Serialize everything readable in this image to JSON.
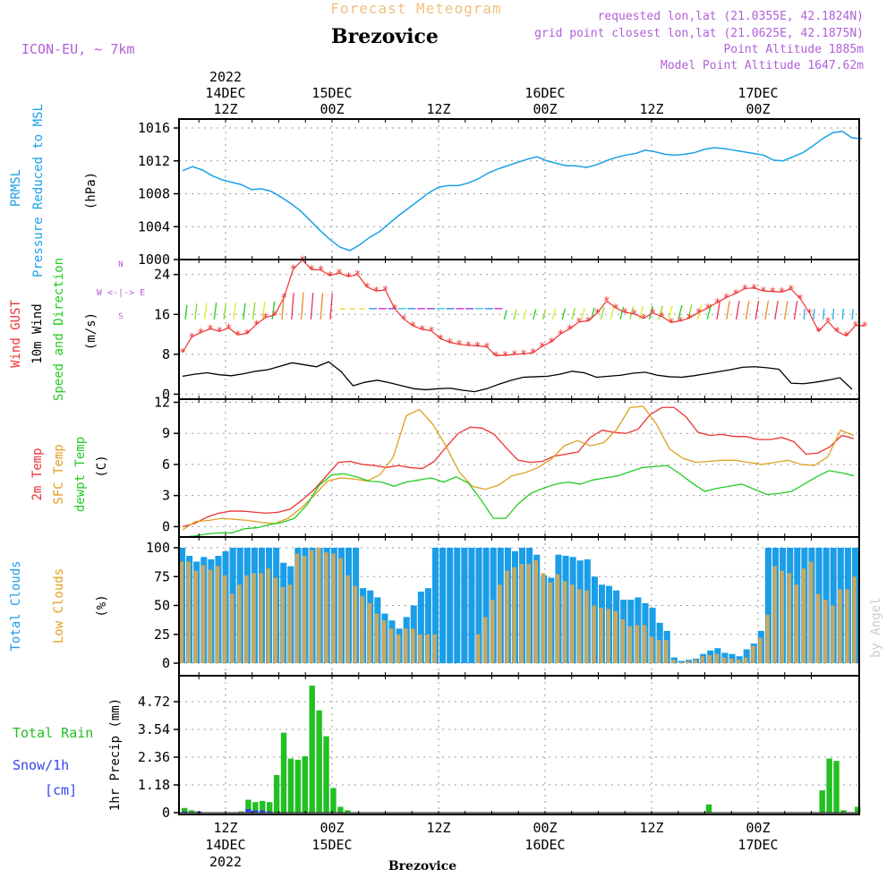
{
  "header": {
    "product": "Forecast Meteogram",
    "location": "Brezovice",
    "model": "ICON-EU, ~ 7km",
    "info_lines": [
      "requested lon,lat (21.0355E, 42.1824N)",
      "grid point closest lon,lat (21.0625E, 42.1875N)",
      "Point Altitude 1885m",
      "Model Point Altitude 1647.62m"
    ],
    "footer_location": "Brezovice",
    "watermark": "by Angel"
  },
  "colors": {
    "pressure": "#1aa0e6",
    "gust": "#ee3333",
    "wind10m": "#000000",
    "temp2m": "#ee3333",
    "sfc_temp": "#e0a020",
    "dewpt": "#22cc22",
    "total_clouds": "#1a9ee8",
    "low_clouds": "#c8a860",
    "rain": "#22c022",
    "snow": "#3344ee",
    "label_purple": "#b060d8",
    "label_orange": "#f0c080"
  },
  "time_axis": {
    "top_ticks": [
      {
        "hour": 12,
        "lines": [
          "2022",
          "14DEC",
          "12Z"
        ]
      },
      {
        "hour": 24,
        "lines": [
          "15DEC",
          "00Z"
        ]
      },
      {
        "hour": 36,
        "lines": [
          "12Z"
        ]
      },
      {
        "hour": 48,
        "lines": [
          "16DEC",
          "00Z"
        ]
      },
      {
        "hour": 60,
        "lines": [
          "12Z"
        ]
      },
      {
        "hour": 72,
        "lines": [
          "17DEC",
          "00Z"
        ]
      }
    ],
    "bottom_ticks": [
      {
        "hour": 12,
        "lines": [
          "12Z",
          "14DEC",
          "2022"
        ]
      },
      {
        "hour": 24,
        "lines": [
          "00Z",
          "15DEC"
        ]
      },
      {
        "hour": 36,
        "lines": [
          "12Z"
        ]
      },
      {
        "hour": 48,
        "lines": [
          "00Z",
          "16DEC"
        ]
      },
      {
        "hour": 60,
        "lines": [
          "12Z"
        ]
      },
      {
        "hour": 72,
        "lines": [
          "00Z",
          "17DEC"
        ]
      }
    ]
  },
  "chart_data": [
    {
      "type": "line",
      "panel": "pressure",
      "ylabel": [
        "PRMSL",
        "Pressure Reduced to MSL",
        "(hPa)"
      ],
      "ylim": [
        1000,
        1017
      ],
      "yticks": [
        1000,
        1004,
        1008,
        1012,
        1016
      ],
      "x_start": 0,
      "x_step": 1,
      "series": [
        {
          "values": [
            1010.8,
            1011.3,
            1010.9,
            1010.2,
            1009.7,
            1009.4,
            1009.1,
            1008.5,
            1008.6,
            1008.3,
            1007.6,
            1006.8,
            1005.9,
            1004.7,
            1003.5,
            1002.4,
            1001.5,
            1001.1,
            1001.8,
            1002.7,
            1003.4,
            1004.4,
            1005.4,
            1006.3,
            1007.2,
            1008.1,
            1008.8,
            1009.0,
            1009.0,
            1009.3,
            1009.8,
            1010.5,
            1011.0,
            1011.4,
            1011.8,
            1012.2,
            1012.5,
            1012.0,
            1011.7,
            1011.4,
            1011.4,
            1011.2,
            1011.5,
            1012.0,
            1012.4,
            1012.7,
            1012.9,
            1013.3,
            1013.1,
            1012.8,
            1012.7,
            1012.8,
            1013.0,
            1013.4,
            1013.6,
            1013.5,
            1013.3,
            1013.1,
            1012.9,
            1012.7,
            1012.1,
            1012.0,
            1012.5,
            1013.0,
            1013.8,
            1014.7,
            1015.4,
            1015.6,
            1014.8,
            1014.7
          ]
        }
      ]
    },
    {
      "type": "line",
      "panel": "wind",
      "ylabel": [
        "Wind GUST",
        "10m Wind",
        "Speed and Direction",
        "(m/s)"
      ],
      "compass": [
        "N",
        "W <-|-> E",
        "S"
      ],
      "ylim": [
        -1,
        27
      ],
      "yticks": [
        0,
        8,
        16,
        24
      ],
      "x_start": 0,
      "x_step": 1,
      "series": [
        {
          "name": "Wind GUST",
          "values": [
            8.4,
            11.5,
            12.4,
            13.1,
            12.6,
            13.3,
            11.9,
            12.2,
            14.0,
            15.4,
            15.9,
            19.4,
            25.1,
            26.9,
            25.0,
            24.9,
            23.8,
            24.3,
            23.6,
            24.0,
            21.5,
            20.7,
            20.9,
            17.2,
            15.1,
            13.7,
            13.0,
            12.7,
            11.1,
            10.4,
            10.0,
            9.8,
            9.7,
            9.5,
            7.7,
            7.8,
            8.0,
            8.1,
            8.3,
            9.6,
            10.5,
            12.1,
            13.1,
            14.5,
            14.7,
            16.3,
            18.7,
            17.3,
            16.4,
            16.1,
            15.2,
            16.3,
            15.6,
            14.4,
            14.7,
            15.3,
            16.4,
            17.3,
            18.4,
            19.4,
            20.2,
            21.2,
            21.3,
            20.7,
            20.6,
            20.5,
            21.1,
            19.2,
            16.3,
            12.6,
            14.6,
            12.6,
            11.7,
            13.8,
            13.7
          ]
        },
        {
          "name": "10m Wind",
          "values": [
            3.6,
            4.0,
            4.3,
            3.9,
            3.7,
            4.1,
            4.6,
            4.9,
            5.6,
            6.3,
            5.9,
            5.5,
            6.5,
            4.6,
            1.7,
            2.4,
            2.8,
            2.3,
            1.7,
            1.1,
            0.9,
            1.1,
            1.2,
            0.8,
            0.5,
            1.1,
            2.0,
            2.8,
            3.4,
            3.5,
            3.6,
            4.0,
            4.6,
            4.3,
            3.4,
            3.6,
            3.8,
            4.2,
            4.4,
            3.8,
            3.5,
            3.4,
            3.7,
            4.1,
            4.5,
            4.9,
            5.4,
            5.5,
            5.3,
            5.0,
            2.2,
            2.1,
            2.4,
            2.8,
            3.3,
            1.0
          ]
        }
      ]
    },
    {
      "type": "line",
      "panel": "temperature",
      "ylabel": [
        "2m Temp",
        "SFC Temp",
        "dewpt Temp",
        "(C)"
      ],
      "ylim": [
        -1,
        12.3
      ],
      "yticks": [
        0,
        3,
        6,
        9,
        12
      ],
      "x_start": 0,
      "x_step": 1,
      "series": [
        {
          "name": "2m Temp",
          "values": [
            0.0,
            0.3,
            0.9,
            1.3,
            1.5,
            1.5,
            1.4,
            1.3,
            1.4,
            1.7,
            2.6,
            3.6,
            4.9,
            6.2,
            6.3,
            6.0,
            5.9,
            5.7,
            5.9,
            5.7,
            5.6,
            6.3,
            7.7,
            9.0,
            9.6,
            9.5,
            8.9,
            7.6,
            6.4,
            6.2,
            6.3,
            6.8,
            7.0,
            7.2,
            8.6,
            9.3,
            9.1,
            9.0,
            9.4,
            10.8,
            11.5,
            11.5,
            10.6,
            9.1,
            8.8,
            8.9,
            8.7,
            8.7,
            8.4,
            8.4,
            8.6,
            8.2,
            7.0,
            7.1,
            7.7,
            8.8,
            8.5
          ]
        },
        {
          "name": "SFC Temp",
          "values": [
            -0.3,
            0.5,
            0.6,
            0.8,
            0.7,
            0.6,
            0.4,
            0.3,
            0.8,
            1.8,
            3.0,
            4.4,
            4.7,
            4.6,
            4.4,
            5.0,
            6.7,
            10.7,
            11.3,
            9.9,
            7.8,
            5.3,
            3.9,
            3.6,
            4.0,
            4.9,
            5.2,
            5.7,
            6.5,
            7.8,
            8.3,
            7.8,
            8.1,
            9.4,
            11.5,
            11.6,
            9.9,
            7.5,
            6.6,
            6.2,
            6.3,
            6.4,
            6.4,
            6.2,
            6.0,
            6.2,
            6.4,
            6.0,
            5.9,
            6.7,
            9.3,
            8.8
          ]
        },
        {
          "name": "dewpt Temp",
          "values": [
            -1.0,
            -0.9,
            -0.7,
            -0.6,
            -0.6,
            -0.2,
            -0.1,
            0.2,
            0.4,
            0.8,
            2.1,
            4.0,
            5.0,
            5.1,
            4.8,
            4.4,
            4.3,
            3.9,
            4.3,
            4.5,
            4.7,
            4.3,
            4.8,
            4.2,
            2.6,
            0.8,
            0.8,
            2.2,
            3.2,
            3.7,
            4.1,
            4.3,
            4.1,
            4.5,
            4.7,
            4.9,
            5.3,
            5.7,
            5.8,
            5.9,
            5.1,
            4.2,
            3.4,
            3.7,
            3.9,
            4.1,
            3.6,
            3.1,
            3.2,
            3.4,
            4.1,
            4.8,
            5.4,
            5.2,
            4.9
          ]
        }
      ]
    },
    {
      "type": "bar",
      "panel": "clouds",
      "ylabel": [
        "Total Clouds",
        "Low Clouds",
        "(%)"
      ],
      "ylim": [
        0,
        100
      ],
      "yticks": [
        0,
        25,
        50,
        75,
        100
      ],
      "x_start": 0,
      "x_step": 1,
      "series": [
        {
          "name": "Total Clouds",
          "values": [
            100,
            93,
            88,
            92,
            90,
            93,
            97,
            100,
            100,
            100,
            100,
            100,
            100,
            100,
            87,
            84,
            100,
            100,
            100,
            100,
            100,
            100,
            100,
            100,
            100,
            65,
            63,
            57,
            43,
            37,
            30,
            40,
            50,
            62,
            65,
            100,
            100,
            100,
            100,
            100,
            100,
            100,
            100,
            100,
            100,
            100,
            97,
            100,
            100,
            94,
            76,
            74,
            94,
            93,
            92,
            89,
            90,
            75,
            68,
            67,
            63,
            55,
            55,
            57,
            52,
            48,
            35,
            28,
            5,
            2,
            3,
            4,
            8,
            11,
            13,
            9,
            8,
            6,
            12,
            17,
            28,
            100,
            100,
            100,
            100,
            100,
            100,
            100,
            100,
            100,
            100,
            100,
            100,
            100
          ]
        },
        {
          "name": "Low Clouds",
          "values": [
            88,
            88,
            80,
            85,
            81,
            84,
            76,
            60,
            68,
            76,
            78,
            78,
            82,
            74,
            66,
            68,
            95,
            93,
            98,
            100,
            96,
            95,
            91,
            76,
            67,
            58,
            52,
            43,
            37,
            30,
            25,
            30,
            30,
            25,
            25,
            25,
            0,
            0,
            0,
            0,
            0,
            25,
            40,
            55,
            68,
            80,
            83,
            86,
            86,
            89,
            78,
            70,
            77,
            71,
            68,
            64,
            63,
            50,
            48,
            47,
            45,
            38,
            32,
            33,
            33,
            23,
            20,
            20,
            3,
            1,
            2,
            3,
            6,
            7,
            8,
            5,
            4,
            3,
            5,
            15,
            22,
            42,
            84,
            80,
            78,
            68,
            82,
            88,
            60,
            55,
            50,
            64,
            64,
            75
          ]
        }
      ]
    },
    {
      "type": "bar",
      "panel": "precip",
      "ylabel": [
        "1hr Precip (mm)"
      ],
      "legend": [
        "Total  Rain",
        "Snow/1h",
        "[cm]"
      ],
      "ylim": [
        0,
        5.4
      ],
      "yticks": [
        0,
        1.18,
        2.36,
        3.54,
        4.72
      ],
      "x_start": 0,
      "x_step": 1,
      "series": [
        {
          "name": "Total Rain",
          "values": [
            0.2,
            0.1,
            0.05,
            0,
            0,
            0,
            0,
            0,
            0.05,
            0.55,
            0.45,
            0.5,
            0.45,
            1.6,
            3.4,
            2.3,
            2.25,
            2.4,
            5.4,
            4.35,
            3.25,
            1.05,
            0.25,
            0.1,
            0,
            0,
            0,
            0,
            0,
            0,
            0,
            0,
            0,
            0,
            0,
            0,
            0,
            0,
            0,
            0,
            0,
            0,
            0,
            0,
            0,
            0,
            0,
            0,
            0,
            0,
            0,
            0,
            0,
            0,
            0,
            0,
            0,
            0,
            0,
            0,
            0,
            0,
            0,
            0,
            0,
            0,
            0,
            0,
            0,
            0,
            0,
            0,
            0,
            0,
            0.35,
            0,
            0,
            0,
            0,
            0,
            0,
            0,
            0,
            0,
            0,
            0,
            0,
            0,
            0,
            0,
            0.95,
            2.3,
            2.2,
            0.1,
            0,
            0.25
          ]
        },
        {
          "name": "Snow/1h",
          "values": [
            0.05,
            0,
            0.05,
            0,
            0,
            0,
            0,
            0,
            0,
            0.15,
            0.1,
            0.1,
            0.05,
            0,
            0,
            0,
            0,
            0,
            0,
            0,
            0,
            0,
            0,
            0,
            0,
            0,
            0,
            0,
            0,
            0,
            0,
            0,
            0,
            0,
            0,
            0,
            0,
            0,
            0,
            0,
            0,
            0,
            0,
            0,
            0,
            0,
            0,
            0,
            0,
            0,
            0,
            0,
            0,
            0,
            0,
            0,
            0,
            0,
            0,
            0,
            0,
            0,
            0,
            0,
            0,
            0,
            0,
            0,
            0,
            0,
            0,
            0,
            0,
            0,
            0,
            0,
            0,
            0,
            0,
            0,
            0,
            0,
            0,
            0,
            0,
            0,
            0,
            0,
            0,
            0,
            0,
            0,
            0,
            0,
            0
          ]
        }
      ]
    }
  ]
}
